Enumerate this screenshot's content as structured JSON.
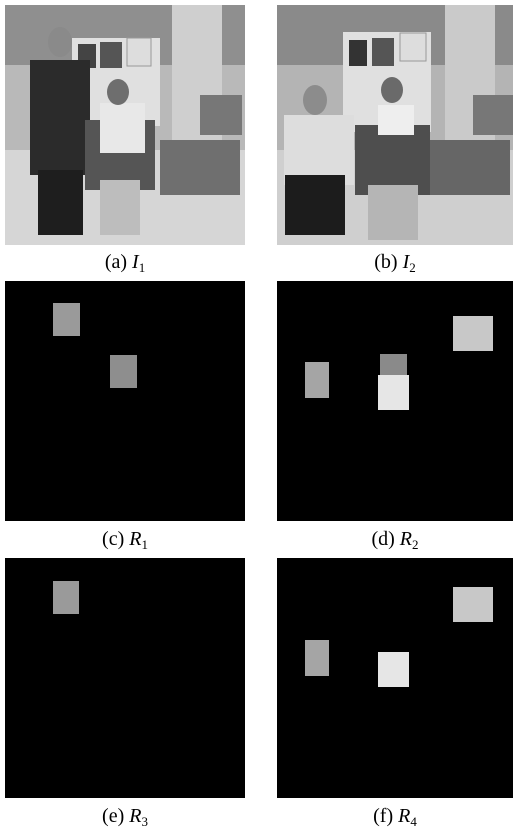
{
  "panels": [
    {
      "label": "(a)",
      "symbol": "I",
      "subscript": "1"
    },
    {
      "label": "(b)",
      "symbol": "I",
      "subscript": "2"
    },
    {
      "label": "(c)",
      "symbol": "R",
      "subscript": "1"
    },
    {
      "label": "(d)",
      "symbol": "R",
      "subscript": "2"
    },
    {
      "label": "(e)",
      "symbol": "R",
      "subscript": "3"
    },
    {
      "label": "(f)",
      "symbol": "R",
      "subscript": "4"
    }
  ]
}
